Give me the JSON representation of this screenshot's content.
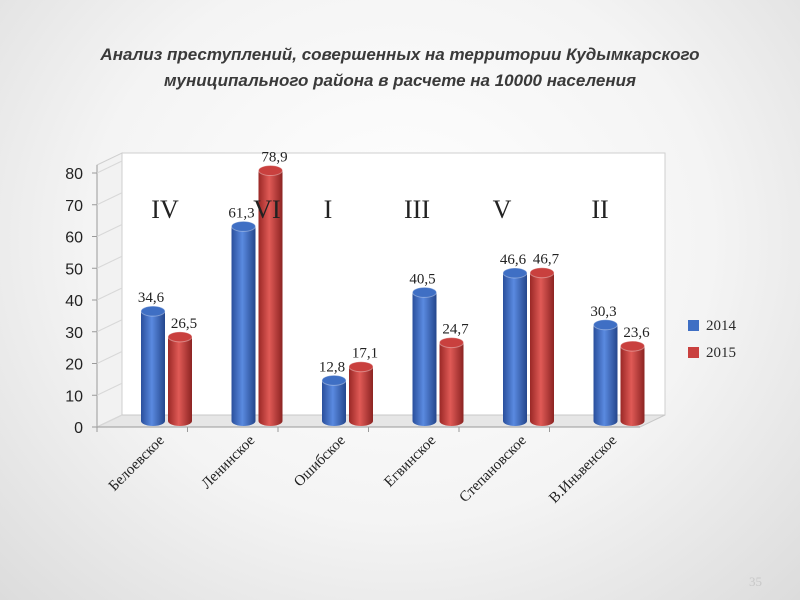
{
  "title_line1": "Анализ преступлений, совершенных на территории Кудымкарского",
  "title_line2": "муниципального района в расчете на 10000 населения",
  "slide_number": "35",
  "colors": {
    "series_2014": "#3f6fc4",
    "series_2015": "#c9403e"
  },
  "chart_data": {
    "type": "bar",
    "title": "Анализ преступлений, совершенных на территории Кудымкарского муниципального района в расчете на 10000 населения",
    "categories": [
      "Белоевское",
      "Ленинское",
      "Ошибское",
      "Егвинское",
      "Степановское",
      "В.Иньвенское"
    ],
    "series": [
      {
        "name": "2014",
        "values": [
          34.6,
          61.3,
          12.8,
          40.5,
          46.6,
          30.3
        ],
        "labels": [
          "34,6",
          "61,3",
          "12,8",
          "40,5",
          "46,6",
          "30,3"
        ]
      },
      {
        "name": "2015",
        "values": [
          26.5,
          78.9,
          17.1,
          24.7,
          46.7,
          23.6
        ],
        "labels": [
          "26,5",
          "78,9",
          "17,1",
          "24,7",
          "46,7",
          "23,6"
        ]
      }
    ],
    "rank_annotations": [
      "IV",
      "VI",
      "I",
      "III",
      "V",
      "II"
    ],
    "y_ticks": [
      "0",
      "10",
      "20",
      "30",
      "40",
      "50",
      "60",
      "70",
      "80"
    ],
    "ylim": [
      0,
      80
    ],
    "legend_position": "right",
    "grid": false
  }
}
